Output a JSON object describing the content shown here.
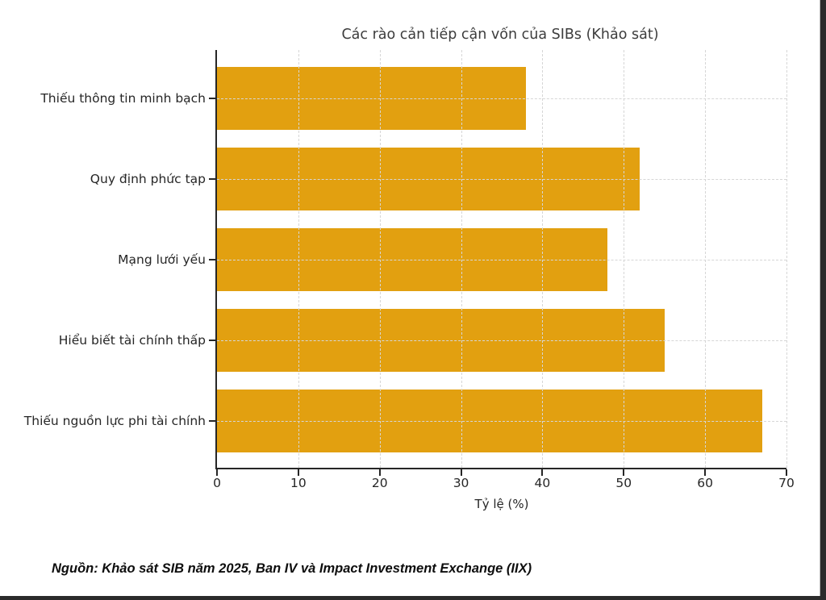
{
  "chart_data": {
    "type": "bar",
    "orientation": "horizontal",
    "title": "Các rào cản tiếp cận vốn của SIBs (Khảo sát)",
    "categories": [
      "Thiếu thông tin minh bạch",
      "Quy định phức tạp",
      "Mạng lưới yếu",
      "Hiểu biết tài chính thấp",
      "Thiếu nguồn lực phi tài chính"
    ],
    "values": [
      38,
      52,
      48,
      55,
      67
    ],
    "xlabel": "Tỷ lệ (%)",
    "xlim": [
      0,
      70
    ],
    "xticks": [
      0,
      10,
      20,
      30,
      40,
      50,
      60,
      70
    ],
    "bar_color": "#E2A010",
    "grid": "dashed",
    "grid_color": "#d6d6d6",
    "legend": "none"
  },
  "source_note": "Nguồn: Khảo sát SIB năm 2025, Ban IV và Impact Investment Exchange (IIX)",
  "window": {
    "edge_color": "#2b2b2b"
  }
}
